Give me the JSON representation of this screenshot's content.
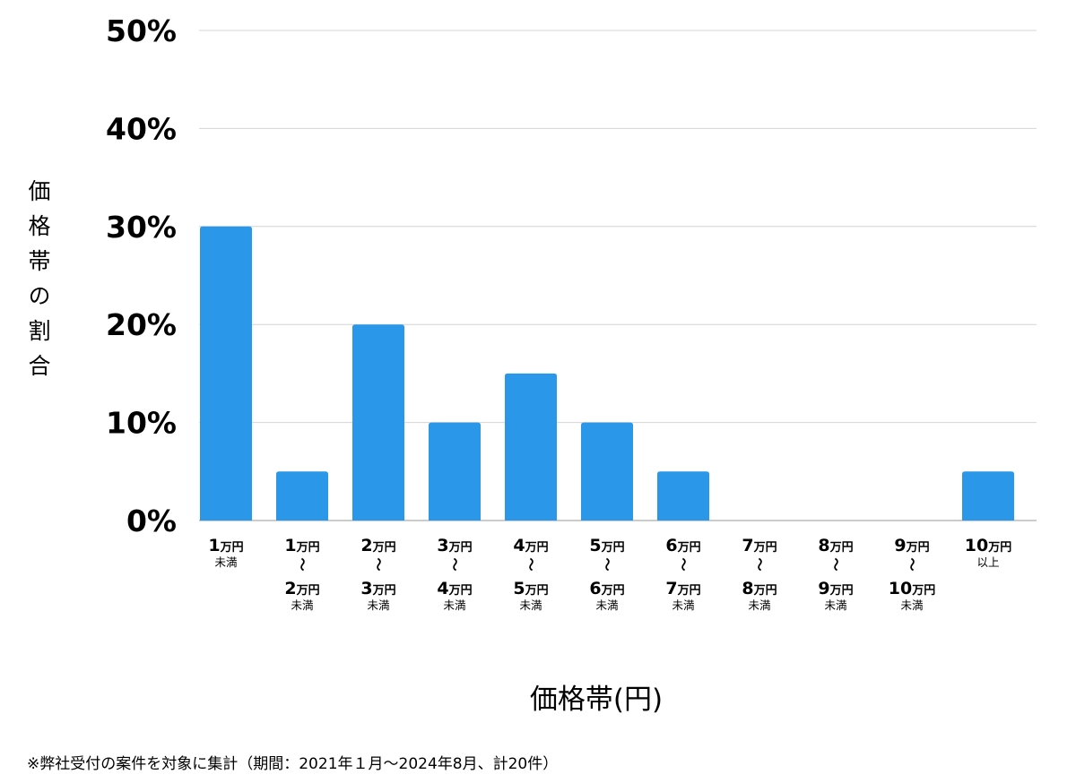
{
  "chart_data": {
    "type": "bar",
    "ylabel": "価格帯の割合",
    "xlabel": "価格帯(円)",
    "ylim": [
      0,
      50
    ],
    "yticks": [
      0,
      10,
      20,
      30,
      40,
      50
    ],
    "ytick_labels": [
      "0%",
      "10%",
      "20%",
      "30%",
      "40%",
      "50%"
    ],
    "grid": true,
    "bar_color": "#2b97e8",
    "categories": [
      {
        "lines": [
          "1万円",
          "未満"
        ]
      },
      {
        "lines": [
          "1万円",
          "〜",
          "2万円",
          "未満"
        ]
      },
      {
        "lines": [
          "2万円",
          "〜",
          "3万円",
          "未満"
        ]
      },
      {
        "lines": [
          "3万円",
          "〜",
          "4万円",
          "未満"
        ]
      },
      {
        "lines": [
          "4万円",
          "〜",
          "5万円",
          "未満"
        ]
      },
      {
        "lines": [
          "5万円",
          "〜",
          "6万円",
          "未満"
        ]
      },
      {
        "lines": [
          "6万円",
          "〜",
          "7万円",
          "未満"
        ]
      },
      {
        "lines": [
          "7万円",
          "〜",
          "8万円",
          "未満"
        ]
      },
      {
        "lines": [
          "8万円",
          "〜",
          "9万円",
          "未満"
        ]
      },
      {
        "lines": [
          "9万円",
          "〜",
          "10万円",
          "未満"
        ]
      },
      {
        "lines": [
          "10万円",
          "以上"
        ]
      }
    ],
    "values": [
      30,
      5,
      20,
      10,
      15,
      10,
      5,
      0,
      0,
      0,
      5
    ]
  },
  "footnote": "※弊社受付の案件を対象に集計（期間：2021年１月〜2024年8月、計20件）"
}
